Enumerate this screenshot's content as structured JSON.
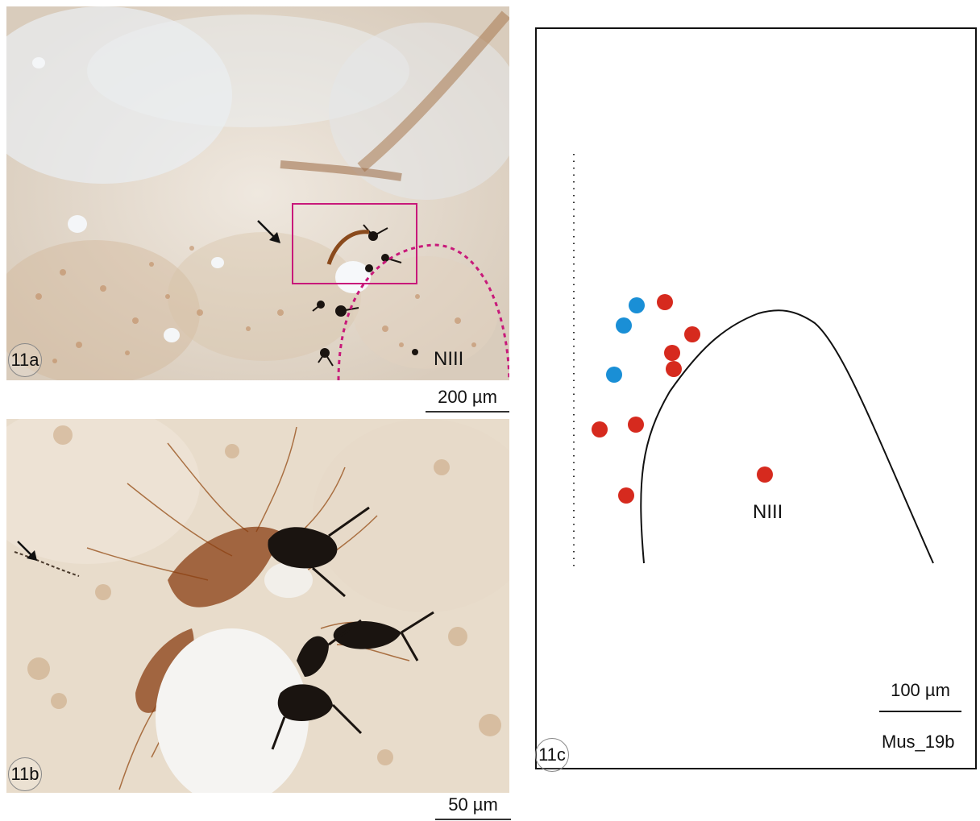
{
  "panels": {
    "a": {
      "label": "11a",
      "structure_label": "NIII",
      "scale_bar": "200 µm"
    },
    "b": {
      "label": "11b",
      "scale_bar": "50 µm"
    },
    "c": {
      "label": "11c",
      "structure_label": "NIII",
      "scale_bar": "100 µm",
      "specimen_id": "Mus_19b"
    }
  },
  "colors": {
    "neuron_red": "#d62a1e",
    "neuron_blue": "#1a8fd6",
    "box_magenta": "#c8197a",
    "stain_brown": "#8a4a1c",
    "stain_black": "#1a1410"
  },
  "icons": [
    "arrow-icon"
  ]
}
